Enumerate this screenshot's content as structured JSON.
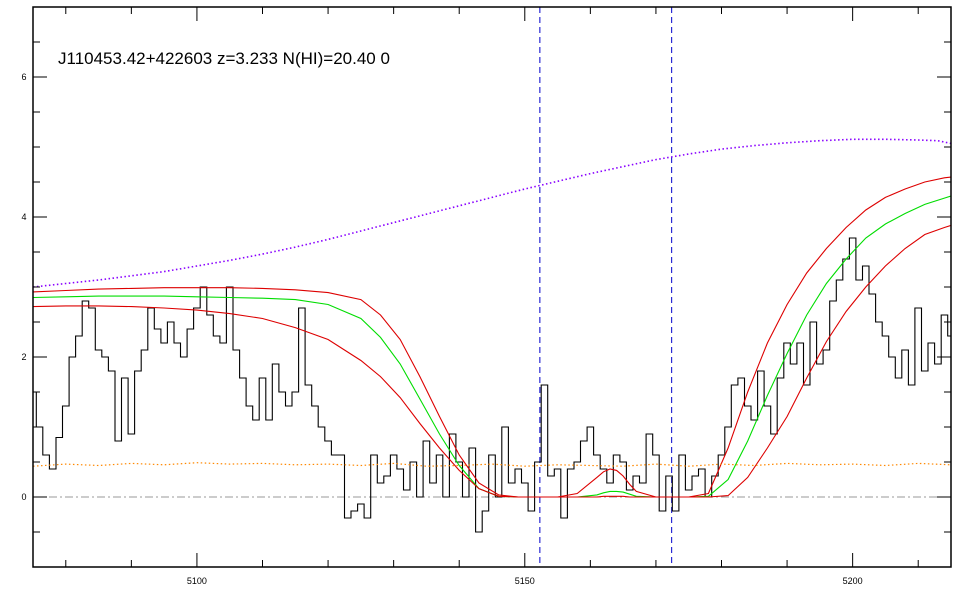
{
  "chart_data": {
    "type": "line",
    "title": "J110453.42+422603 z=3.233 N(HI)=20.40 0",
    "xlabel": "",
    "ylabel": "",
    "xlim": [
      5075,
      5215
    ],
    "ylim": [
      -1,
      7
    ],
    "x_ticks": [
      5100,
      5150,
      5200
    ],
    "y_ticks": [
      0,
      2,
      4,
      6
    ],
    "grid": false,
    "colors": {
      "spectrum": "#000000",
      "model": "#00dd00",
      "model_bounds": "#dd0000",
      "continuum": "#8800ff",
      "error": "#ff8800",
      "zero_line": "#999999",
      "markers": "#0000cc"
    },
    "vertical_markers": [
      5152.3,
      5172.4
    ],
    "zero_line": 0,
    "series": [
      {
        "role": "spectrum",
        "style": "step",
        "x": [
          5075,
          5076,
          5077,
          5078,
          5079,
          5080,
          5081,
          5082,
          5083,
          5084,
          5085,
          5086,
          5087,
          5088,
          5089,
          5090,
          5091,
          5092,
          5093,
          5094,
          5095,
          5096,
          5097,
          5098,
          5099,
          5100,
          5101,
          5102,
          5103,
          5104,
          5105,
          5106,
          5107,
          5108,
          5109,
          5110,
          5111,
          5112,
          5113,
          5114,
          5115,
          5116,
          5117,
          5118,
          5119,
          5120,
          5121,
          5122,
          5123,
          5124,
          5125,
          5126,
          5127,
          5128,
          5129,
          5130,
          5131,
          5132,
          5133,
          5134,
          5135,
          5136,
          5137,
          5138,
          5139,
          5140,
          5141,
          5142,
          5143,
          5144,
          5145,
          5146,
          5147,
          5148,
          5149,
          5150,
          5151,
          5152,
          5153,
          5154,
          5155,
          5156,
          5157,
          5158,
          5159,
          5160,
          5161,
          5162,
          5163,
          5164,
          5165,
          5166,
          5167,
          5168,
          5169,
          5170,
          5171,
          5172,
          5173,
          5174,
          5175,
          5176,
          5177,
          5178,
          5179,
          5180,
          5181,
          5182,
          5183,
          5184,
          5185,
          5186,
          5187,
          5188,
          5189,
          5190,
          5191,
          5192,
          5193,
          5194,
          5195,
          5196,
          5197,
          5198,
          5199,
          5200,
          5201,
          5202,
          5203,
          5204,
          5205,
          5206,
          5207,
          5208,
          5209,
          5210,
          5211,
          5212,
          5213,
          5214,
          5215
        ],
        "y": [
          1.5,
          1.0,
          0.6,
          0.4,
          0.85,
          1.3,
          2.0,
          2.3,
          2.8,
          2.7,
          2.1,
          2.0,
          1.8,
          0.8,
          1.7,
          0.9,
          1.8,
          2.1,
          2.7,
          2.4,
          2.2,
          2.5,
          2.2,
          2.0,
          2.4,
          2.7,
          3.0,
          2.6,
          2.3,
          2.2,
          3.0,
          2.1,
          1.7,
          1.3,
          1.1,
          1.7,
          1.1,
          1.9,
          1.5,
          1.3,
          1.5,
          2.7,
          1.6,
          1.3,
          1.0,
          0.8,
          0.6,
          0.6,
          -0.3,
          -0.2,
          -0.1,
          -0.3,
          0.6,
          0.2,
          0.3,
          0.6,
          0.4,
          0.1,
          0.5,
          0.0,
          0.8,
          0.2,
          0.6,
          0.0,
          0.9,
          0.5,
          0.0,
          0.7,
          -0.5,
          -0.2,
          0.6,
          0.0,
          1.0,
          0.2,
          0.4,
          0.2,
          -0.2,
          0.5,
          1.6,
          0.3,
          0.4,
          -0.3,
          0.4,
          0.5,
          0.8,
          1.0,
          0.6,
          0.4,
          0.2,
          0.6,
          0.5,
          0.1,
          0.3,
          0.2,
          0.9,
          0.6,
          -0.2,
          0.3,
          -0.2,
          0.6,
          0.1,
          0.3,
          0.4,
          0.0,
          0.3,
          0.6,
          1.0,
          1.6,
          1.7,
          1.3,
          1.1,
          1.8,
          1.3,
          0.9,
          1.7,
          2.2,
          1.9,
          2.2,
          1.6,
          2.5,
          1.9,
          2.1,
          2.8,
          3.1,
          3.4,
          3.7,
          3.1,
          3.3,
          2.9,
          2.5,
          2.3,
          2.0,
          1.7,
          2.1,
          1.6,
          2.7,
          1.8,
          2.2,
          1.9,
          2.6,
          2.3
        ]
      },
      {
        "role": "model",
        "x": [
          5075,
          5080,
          5085,
          5090,
          5095,
          5100,
          5105,
          5110,
          5115,
          5120,
          5125,
          5128,
          5131,
          5134,
          5137,
          5140,
          5143,
          5146,
          5149,
          5152,
          5155,
          5158,
          5161,
          5162,
          5163,
          5164,
          5165,
          5166,
          5167,
          5170,
          5175,
          5178,
          5181,
          5184,
          5187,
          5190,
          5193,
          5196,
          5199,
          5202,
          5205,
          5208,
          5211,
          5214,
          5215
        ],
        "y": [
          2.85,
          2.86,
          2.87,
          2.87,
          2.87,
          2.86,
          2.85,
          2.84,
          2.82,
          2.75,
          2.55,
          2.28,
          1.9,
          1.4,
          0.9,
          0.45,
          0.12,
          0.01,
          0.0,
          0.0,
          0.0,
          0.0,
          0.03,
          0.06,
          0.08,
          0.08,
          0.07,
          0.04,
          0.01,
          0.0,
          0.0,
          0.01,
          0.25,
          0.8,
          1.45,
          2.05,
          2.6,
          3.05,
          3.4,
          3.7,
          3.9,
          4.05,
          4.18,
          4.27,
          4.3
        ]
      },
      {
        "role": "model_upper",
        "x": [
          5075,
          5080,
          5085,
          5090,
          5095,
          5100,
          5105,
          5110,
          5115,
          5120,
          5125,
          5128,
          5131,
          5134,
          5137,
          5140,
          5143,
          5146,
          5149,
          5152,
          5155,
          5158,
          5161,
          5162,
          5163,
          5164,
          5165,
          5166,
          5167,
          5170,
          5175,
          5178,
          5181,
          5184,
          5187,
          5190,
          5193,
          5196,
          5199,
          5202,
          5205,
          5208,
          5211,
          5214,
          5215
        ],
        "y": [
          2.93,
          2.95,
          2.97,
          2.98,
          2.99,
          2.99,
          2.99,
          2.98,
          2.96,
          2.92,
          2.82,
          2.6,
          2.25,
          1.72,
          1.15,
          0.6,
          0.2,
          0.03,
          0.0,
          0.0,
          0.0,
          0.05,
          0.28,
          0.36,
          0.4,
          0.38,
          0.3,
          0.18,
          0.08,
          0.0,
          0.0,
          0.05,
          0.7,
          1.5,
          2.2,
          2.75,
          3.2,
          3.55,
          3.85,
          4.1,
          4.28,
          4.4,
          4.5,
          4.56,
          4.57
        ]
      },
      {
        "role": "model_lower",
        "x": [
          5075,
          5080,
          5085,
          5090,
          5095,
          5100,
          5105,
          5110,
          5115,
          5120,
          5125,
          5128,
          5131,
          5134,
          5137,
          5140,
          5143,
          5146,
          5149,
          5152,
          5155,
          5158,
          5161,
          5162,
          5163,
          5164,
          5165,
          5166,
          5167,
          5170,
          5175,
          5178,
          5181,
          5184,
          5187,
          5190,
          5193,
          5196,
          5199,
          5202,
          5205,
          5208,
          5211,
          5214,
          5215
        ],
        "y": [
          2.72,
          2.73,
          2.73,
          2.72,
          2.7,
          2.67,
          2.62,
          2.55,
          2.42,
          2.25,
          1.95,
          1.72,
          1.42,
          1.05,
          0.7,
          0.38,
          0.12,
          0.01,
          0.0,
          0.0,
          0.0,
          0.0,
          0.0,
          0.01,
          0.01,
          0.01,
          0.01,
          0.0,
          0.0,
          0.0,
          0.0,
          0.0,
          0.02,
          0.28,
          0.7,
          1.15,
          1.7,
          2.22,
          2.65,
          3.0,
          3.3,
          3.55,
          3.75,
          3.85,
          3.88
        ]
      },
      {
        "role": "continuum",
        "style": "dotted",
        "x": [
          5075,
          5080,
          5085,
          5090,
          5095,
          5100,
          5105,
          5110,
          5115,
          5120,
          5125,
          5130,
          5135,
          5140,
          5145,
          5150,
          5155,
          5160,
          5165,
          5170,
          5175,
          5180,
          5185,
          5190,
          5195,
          5200,
          5205,
          5210,
          5213,
          5215
        ],
        "y": [
          3.0,
          3.05,
          3.1,
          3.16,
          3.22,
          3.3,
          3.38,
          3.47,
          3.57,
          3.68,
          3.8,
          3.92,
          4.04,
          4.16,
          4.28,
          4.4,
          4.51,
          4.62,
          4.72,
          4.82,
          4.9,
          4.97,
          5.02,
          5.06,
          5.09,
          5.11,
          5.11,
          5.1,
          5.09,
          5.05
        ]
      },
      {
        "role": "error",
        "style": "dotted",
        "x": [
          5075,
          5080,
          5085,
          5090,
          5095,
          5100,
          5105,
          5110,
          5115,
          5120,
          5125,
          5130,
          5135,
          5140,
          5145,
          5150,
          5155,
          5160,
          5165,
          5170,
          5175,
          5180,
          5185,
          5190,
          5195,
          5200,
          5205,
          5210,
          5215
        ],
        "y": [
          0.44,
          0.47,
          0.45,
          0.48,
          0.46,
          0.49,
          0.47,
          0.48,
          0.46,
          0.47,
          0.45,
          0.48,
          0.44,
          0.45,
          0.47,
          0.44,
          0.46,
          0.45,
          0.44,
          0.47,
          0.44,
          0.47,
          0.45,
          0.48,
          0.46,
          0.47,
          0.45,
          0.48,
          0.46
        ]
      }
    ]
  }
}
